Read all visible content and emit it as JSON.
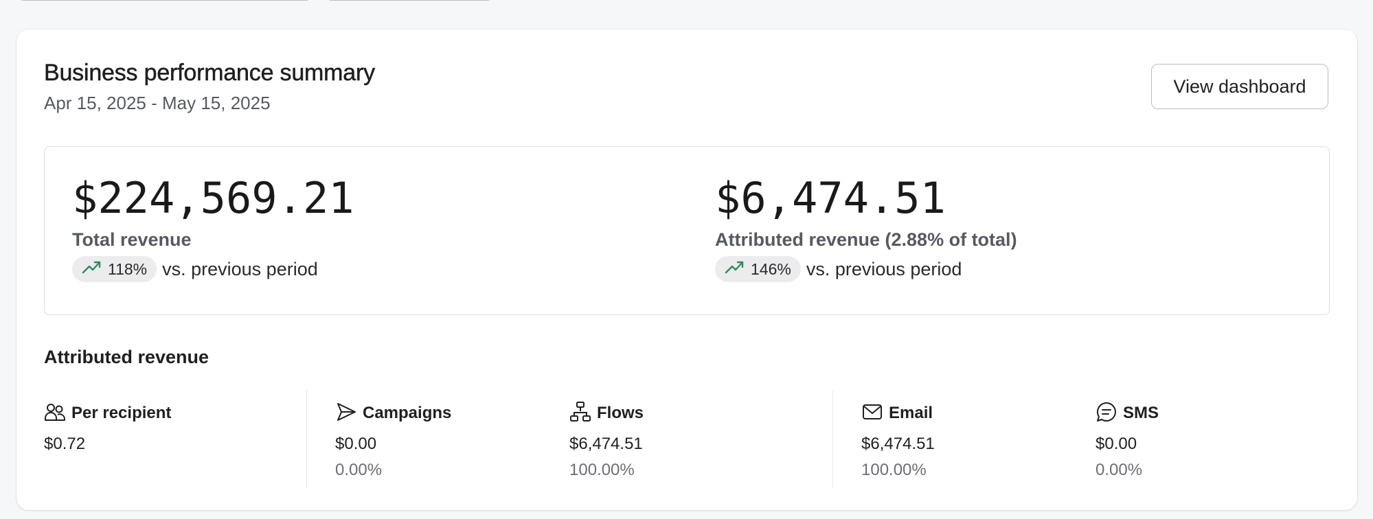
{
  "header": {
    "title": "Business performance summary",
    "date_range": "Apr 15, 2025 - May 15, 2025",
    "view_button": "View dashboard"
  },
  "summary": {
    "total": {
      "amount": "$224,569.21",
      "label": "Total revenue",
      "change": "118%",
      "comparison": "vs. previous period",
      "trend_icon": "trending-up-icon"
    },
    "attributed": {
      "amount": "$6,474.51",
      "label": "Attributed revenue (2.88% of total)",
      "change": "146%",
      "comparison": "vs. previous period",
      "trend_icon": "trending-up-icon"
    }
  },
  "attributed_section": {
    "title": "Attributed revenue",
    "stats": [
      {
        "name": "Per recipient",
        "value": "$0.72",
        "percent": "",
        "icon": "people-icon"
      },
      {
        "name": "Campaigns",
        "value": "$0.00",
        "percent": "0.00%",
        "icon": "send-icon"
      },
      {
        "name": "Flows",
        "value": "$6,474.51",
        "percent": "100.00%",
        "icon": "flow-icon"
      },
      {
        "name": "Email",
        "value": "$6,474.51",
        "percent": "100.00%",
        "icon": "mail-icon"
      },
      {
        "name": "SMS",
        "value": "$0.00",
        "percent": "0.00%",
        "icon": "chat-icon"
      }
    ]
  },
  "colors": {
    "trend_green": "#2e8b57",
    "card_background": "#ffffff",
    "page_background": "#f6f7f9"
  }
}
